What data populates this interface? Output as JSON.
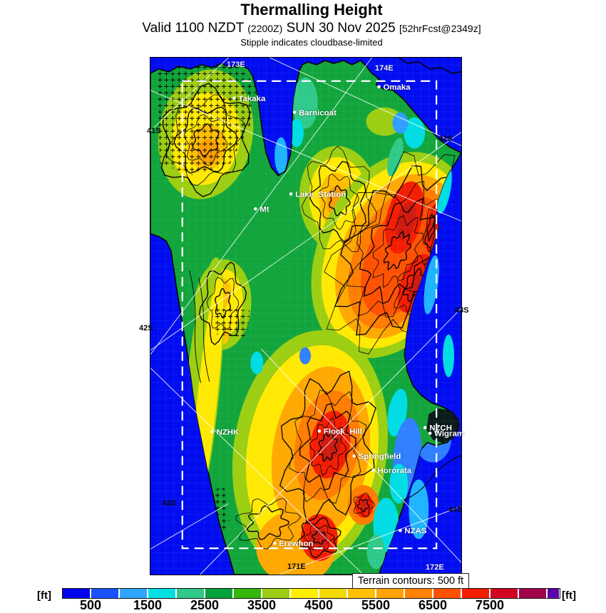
{
  "header": {
    "title": "Thermalling Height",
    "valid_prefix": "Valid 1100 NZDT",
    "valid_zulu": "(2200Z)",
    "valid_date": "SUN 30 Nov 2025",
    "forecast_ref": "[52hrFcst@2349z]",
    "stipple_note": "Stipple indicates cloudbase-limited"
  },
  "map": {
    "places": [
      {
        "name": "Takaka"
      },
      {
        "name": "Barnicoat"
      },
      {
        "name": "Omaka"
      },
      {
        "name": "Lake_Station"
      },
      {
        "name": "Mt"
      },
      {
        "name": "NZHK"
      },
      {
        "name": "Flock_Hill"
      },
      {
        "name": "NZCH"
      },
      {
        "name": "Wigram"
      },
      {
        "name": "Springfield"
      },
      {
        "name": "Hororata"
      },
      {
        "name": "NZAS"
      },
      {
        "name": "Erewhon"
      }
    ],
    "graticule_labels": [
      "173E",
      "174E",
      "41S",
      "42S",
      "42S",
      "43S",
      "43S",
      "44S",
      "171E",
      "172E"
    ]
  },
  "legend": {
    "unit_left": "[ft]",
    "unit_right": "[ft]",
    "terrain_note": "Terrain contours: 500 ft",
    "tick_labels": [
      "500",
      "1500",
      "2500",
      "3500",
      "4500",
      "5500",
      "6500",
      "7500"
    ],
    "scale_min_ft": 0,
    "scale_step_ft": 500,
    "colors": [
      "#0202ef",
      "#1b52ff",
      "#2ea6ff",
      "#02dfe3",
      "#2fc98a",
      "#04a33c",
      "#35b80a",
      "#9ccd12",
      "#fff000",
      "#f2da02",
      "#ffc002",
      "#ffa202",
      "#ff8202",
      "#ff5102",
      "#f31d02",
      "#d20222",
      "#a2024c",
      "#5b03a8"
    ]
  }
}
